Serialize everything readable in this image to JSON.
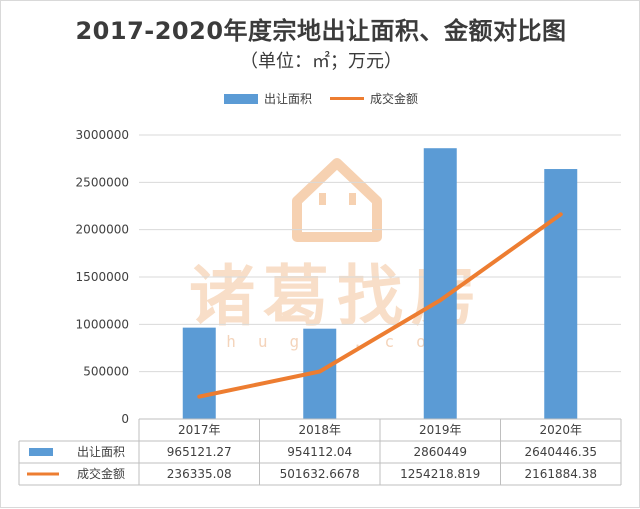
{
  "chart_data": {
    "type": "bar",
    "title": "2017-2020年度宗地出让面积、金额对比图",
    "subtitle": "（单位：㎡；万元）",
    "categories": [
      "2017年",
      "2018年",
      "2019年",
      "2020年"
    ],
    "series": [
      {
        "name": "出让面积",
        "type": "bar",
        "color": "#5b9bd5",
        "values": [
          965121.27,
          954112.04,
          2860449,
          2640446.35
        ],
        "labels": [
          "965121.27",
          "954112.04",
          "2860449",
          "2640446.35"
        ]
      },
      {
        "name": "成交金额",
        "type": "line",
        "color": "#ed7d31",
        "values": [
          236335.08,
          501632.6678,
          1254218.819,
          2161884.38
        ],
        "labels": [
          "236335.08",
          "501632.6678",
          "1254218.819",
          "2161884.38"
        ]
      }
    ],
    "ylim": [
      0,
      3000000
    ],
    "yticks": [
      0,
      500000,
      1000000,
      1500000,
      2000000,
      2500000,
      3000000
    ],
    "ytick_labels": [
      "0",
      "500000",
      "1000000",
      "1500000",
      "2000000",
      "2500000",
      "3000000"
    ],
    "grid": true,
    "legend_position": "top",
    "data_table": true
  },
  "watermark": {
    "text": "诸葛找房",
    "subtext": "zhuge.com",
    "color": "#f5c9a4"
  }
}
